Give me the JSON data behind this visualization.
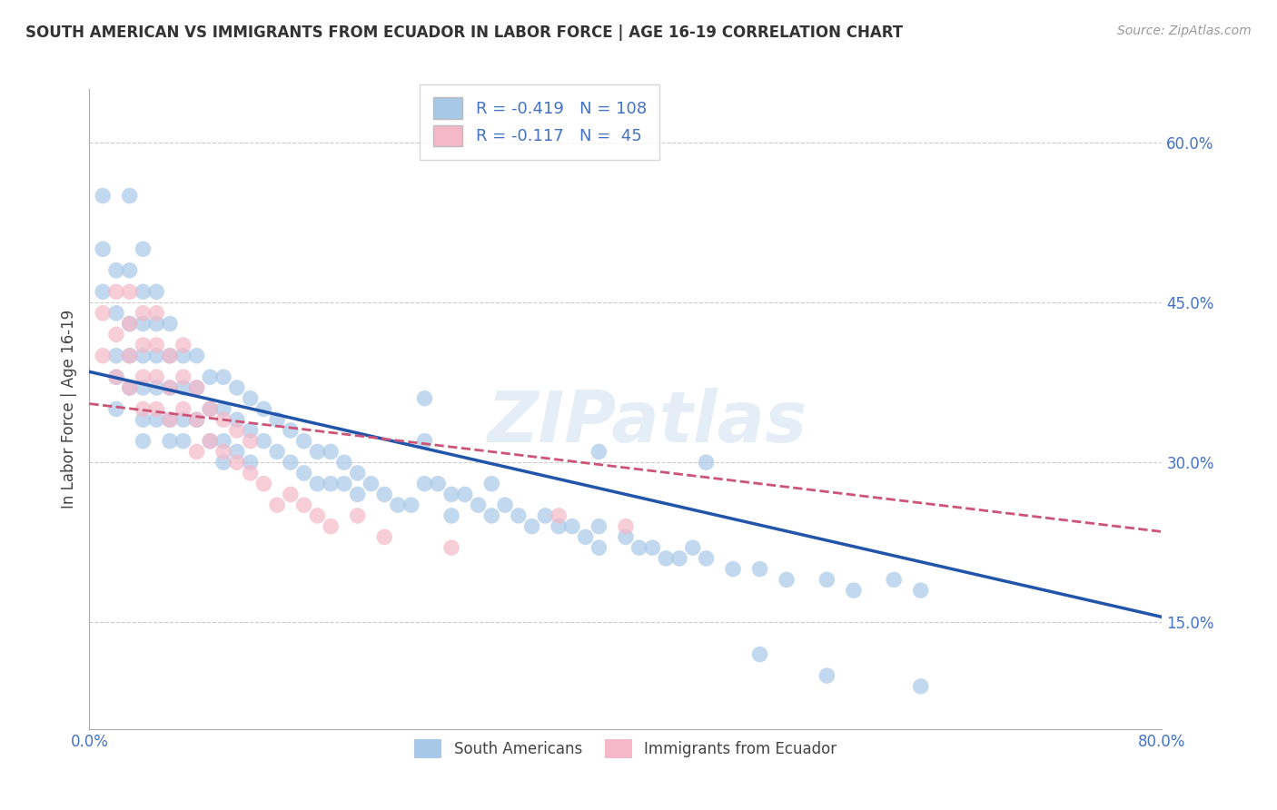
{
  "title": "SOUTH AMERICAN VS IMMIGRANTS FROM ECUADOR IN LABOR FORCE | AGE 16-19 CORRELATION CHART",
  "source": "Source: ZipAtlas.com",
  "ylabel": "In Labor Force | Age 16-19",
  "xlim": [
    0.0,
    0.8
  ],
  "ylim": [
    0.05,
    0.65
  ],
  "xticks": [
    0.0,
    0.1,
    0.2,
    0.3,
    0.4,
    0.5,
    0.6,
    0.7,
    0.8
  ],
  "xticklabels": [
    "0.0%",
    "",
    "",
    "",
    "",
    "",
    "",
    "",
    "80.0%"
  ],
  "ytick_positions": [
    0.15,
    0.3,
    0.45,
    0.6
  ],
  "ytick_labels": [
    "15.0%",
    "30.0%",
    "45.0%",
    "60.0%"
  ],
  "blue_color": "#a8c8e8",
  "pink_color": "#f4b8c8",
  "blue_line_color": "#2255aa",
  "pink_line_color": "#cc5577",
  "r_blue": -0.419,
  "n_blue": 108,
  "r_pink": -0.117,
  "n_pink": 45,
  "watermark": "ZIPatlas",
  "legend_label_blue": "South Americans",
  "legend_label_pink": "Immigrants from Ecuador",
  "blue_line_x0": 0.0,
  "blue_line_y0": 0.385,
  "blue_line_x1": 0.8,
  "blue_line_y1": 0.155,
  "pink_line_x0": 0.0,
  "pink_line_y0": 0.355,
  "pink_line_x1": 0.8,
  "pink_line_y1": 0.235,
  "blue_scatter_x": [
    0.01,
    0.01,
    0.01,
    0.02,
    0.02,
    0.02,
    0.02,
    0.02,
    0.03,
    0.03,
    0.03,
    0.03,
    0.03,
    0.04,
    0.04,
    0.04,
    0.04,
    0.04,
    0.04,
    0.04,
    0.05,
    0.05,
    0.05,
    0.05,
    0.05,
    0.06,
    0.06,
    0.06,
    0.06,
    0.06,
    0.07,
    0.07,
    0.07,
    0.07,
    0.08,
    0.08,
    0.08,
    0.09,
    0.09,
    0.09,
    0.1,
    0.1,
    0.1,
    0.1,
    0.11,
    0.11,
    0.11,
    0.12,
    0.12,
    0.12,
    0.13,
    0.13,
    0.14,
    0.14,
    0.15,
    0.15,
    0.16,
    0.16,
    0.17,
    0.17,
    0.18,
    0.18,
    0.19,
    0.19,
    0.2,
    0.2,
    0.21,
    0.22,
    0.23,
    0.24,
    0.25,
    0.25,
    0.26,
    0.27,
    0.27,
    0.28,
    0.29,
    0.3,
    0.3,
    0.31,
    0.32,
    0.33,
    0.34,
    0.35,
    0.36,
    0.37,
    0.38,
    0.38,
    0.4,
    0.41,
    0.42,
    0.43,
    0.44,
    0.45,
    0.46,
    0.48,
    0.5,
    0.52,
    0.55,
    0.57,
    0.6,
    0.62,
    0.25,
    0.38,
    0.46,
    0.5,
    0.55,
    0.62
  ],
  "blue_scatter_y": [
    0.55,
    0.5,
    0.46,
    0.48,
    0.44,
    0.4,
    0.38,
    0.35,
    0.55,
    0.48,
    0.43,
    0.4,
    0.37,
    0.5,
    0.46,
    0.43,
    0.4,
    0.37,
    0.34,
    0.32,
    0.46,
    0.43,
    0.4,
    0.37,
    0.34,
    0.43,
    0.4,
    0.37,
    0.34,
    0.32,
    0.4,
    0.37,
    0.34,
    0.32,
    0.4,
    0.37,
    0.34,
    0.38,
    0.35,
    0.32,
    0.38,
    0.35,
    0.32,
    0.3,
    0.37,
    0.34,
    0.31,
    0.36,
    0.33,
    0.3,
    0.35,
    0.32,
    0.34,
    0.31,
    0.33,
    0.3,
    0.32,
    0.29,
    0.31,
    0.28,
    0.31,
    0.28,
    0.3,
    0.28,
    0.29,
    0.27,
    0.28,
    0.27,
    0.26,
    0.26,
    0.32,
    0.28,
    0.28,
    0.27,
    0.25,
    0.27,
    0.26,
    0.28,
    0.25,
    0.26,
    0.25,
    0.24,
    0.25,
    0.24,
    0.24,
    0.23,
    0.24,
    0.22,
    0.23,
    0.22,
    0.22,
    0.21,
    0.21,
    0.22,
    0.21,
    0.2,
    0.2,
    0.19,
    0.19,
    0.18,
    0.19,
    0.18,
    0.36,
    0.31,
    0.3,
    0.12,
    0.1,
    0.09
  ],
  "pink_scatter_x": [
    0.01,
    0.01,
    0.02,
    0.02,
    0.02,
    0.03,
    0.03,
    0.03,
    0.03,
    0.04,
    0.04,
    0.04,
    0.04,
    0.05,
    0.05,
    0.05,
    0.05,
    0.06,
    0.06,
    0.06,
    0.07,
    0.07,
    0.07,
    0.08,
    0.08,
    0.08,
    0.09,
    0.09,
    0.1,
    0.1,
    0.11,
    0.11,
    0.12,
    0.12,
    0.13,
    0.14,
    0.15,
    0.16,
    0.17,
    0.18,
    0.2,
    0.22,
    0.27,
    0.35,
    0.4
  ],
  "pink_scatter_y": [
    0.44,
    0.4,
    0.46,
    0.42,
    0.38,
    0.46,
    0.43,
    0.4,
    0.37,
    0.44,
    0.41,
    0.38,
    0.35,
    0.44,
    0.41,
    0.38,
    0.35,
    0.4,
    0.37,
    0.34,
    0.41,
    0.38,
    0.35,
    0.37,
    0.34,
    0.31,
    0.35,
    0.32,
    0.34,
    0.31,
    0.33,
    0.3,
    0.32,
    0.29,
    0.28,
    0.26,
    0.27,
    0.26,
    0.25,
    0.24,
    0.25,
    0.23,
    0.22,
    0.25,
    0.24
  ]
}
